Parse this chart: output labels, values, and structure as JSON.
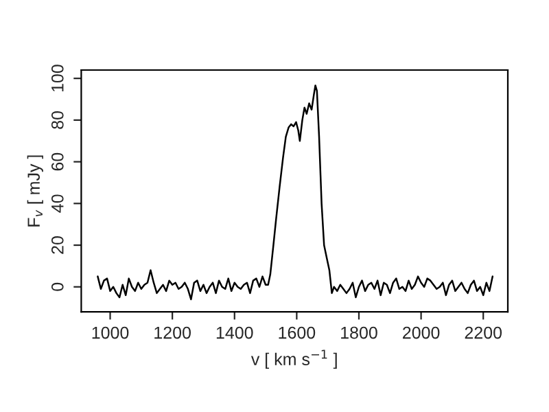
{
  "chart_data": {
    "type": "line",
    "xlabel": "v [ km s$^{−1}$ ]",
    "ylabel": "F$_{v}$ [ mJy ]",
    "x": [
      960,
      970,
      980,
      990,
      1000,
      1010,
      1020,
      1030,
      1040,
      1050,
      1060,
      1070,
      1080,
      1090,
      1100,
      1110,
      1120,
      1130,
      1140,
      1150,
      1160,
      1170,
      1180,
      1190,
      1200,
      1210,
      1220,
      1230,
      1240,
      1250,
      1260,
      1270,
      1280,
      1290,
      1300,
      1310,
      1320,
      1330,
      1340,
      1350,
      1360,
      1370,
      1380,
      1390,
      1400,
      1410,
      1420,
      1430,
      1440,
      1450,
      1460,
      1470,
      1480,
      1490,
      1500,
      1508,
      1515,
      1525,
      1534,
      1545,
      1556,
      1565,
      1574,
      1582,
      1590,
      1598,
      1605,
      1610,
      1618,
      1625,
      1632,
      1640,
      1648,
      1655,
      1660,
      1665,
      1672,
      1680,
      1688,
      1695,
      1705,
      1713,
      1720,
      1730,
      1740,
      1750,
      1760,
      1770,
      1780,
      1790,
      1800,
      1810,
      1820,
      1830,
      1840,
      1850,
      1860,
      1870,
      1880,
      1890,
      1900,
      1910,
      1920,
      1930,
      1940,
      1950,
      1960,
      1970,
      1980,
      1990,
      2000,
      2010,
      2020,
      2030,
      2040,
      2050,
      2060,
      2070,
      2080,
      2090,
      2100,
      2110,
      2120,
      2130,
      2140,
      2150,
      2160,
      2170,
      2180,
      2190,
      2200,
      2210,
      2220,
      2230
    ],
    "values": [
      5,
      -1,
      3,
      4,
      -2,
      0,
      -3,
      -5,
      1,
      -4,
      4,
      0,
      -2,
      2,
      -1,
      1,
      2,
      8,
      2,
      -3,
      -1,
      1,
      -2,
      3,
      1,
      2,
      -1,
      0,
      2,
      -1,
      -6,
      2,
      3,
      -2,
      1,
      -3,
      0,
      2,
      -3,
      3,
      0,
      -1,
      4,
      -2,
      2,
      0,
      -1,
      1,
      2,
      -3,
      3,
      4,
      0,
      5,
      1,
      1,
      6,
      20,
      33,
      48,
      62,
      72,
      76.5,
      78,
      77,
      79,
      75,
      70,
      80,
      86,
      83,
      88,
      85,
      92,
      96.6,
      94,
      72,
      40,
      20,
      15,
      8,
      -3,
      0,
      -2,
      1,
      -1,
      -3,
      -1,
      2,
      -5,
      0,
      3,
      -2,
      1,
      2,
      -1,
      3,
      -4,
      2,
      1,
      -3,
      2,
      4,
      -1,
      0,
      -2,
      3,
      -1,
      1,
      5,
      2,
      0,
      4,
      3,
      1,
      -1,
      0,
      2,
      -4,
      1,
      3,
      -2,
      0,
      2,
      -1,
      -3,
      1,
      3,
      -2,
      0,
      -4,
      2,
      -2,
      5
    ],
    "color": "#000000",
    "xlim": [
      907,
      2279
    ],
    "ylim": [
      -12,
      104
    ],
    "xticks": [
      1000,
      1200,
      1400,
      1600,
      1800,
      2000,
      2200
    ],
    "yticks": [
      0,
      20,
      40,
      60,
      80,
      100
    ],
    "grid": false,
    "marker": "none",
    "line_style": "solid"
  }
}
